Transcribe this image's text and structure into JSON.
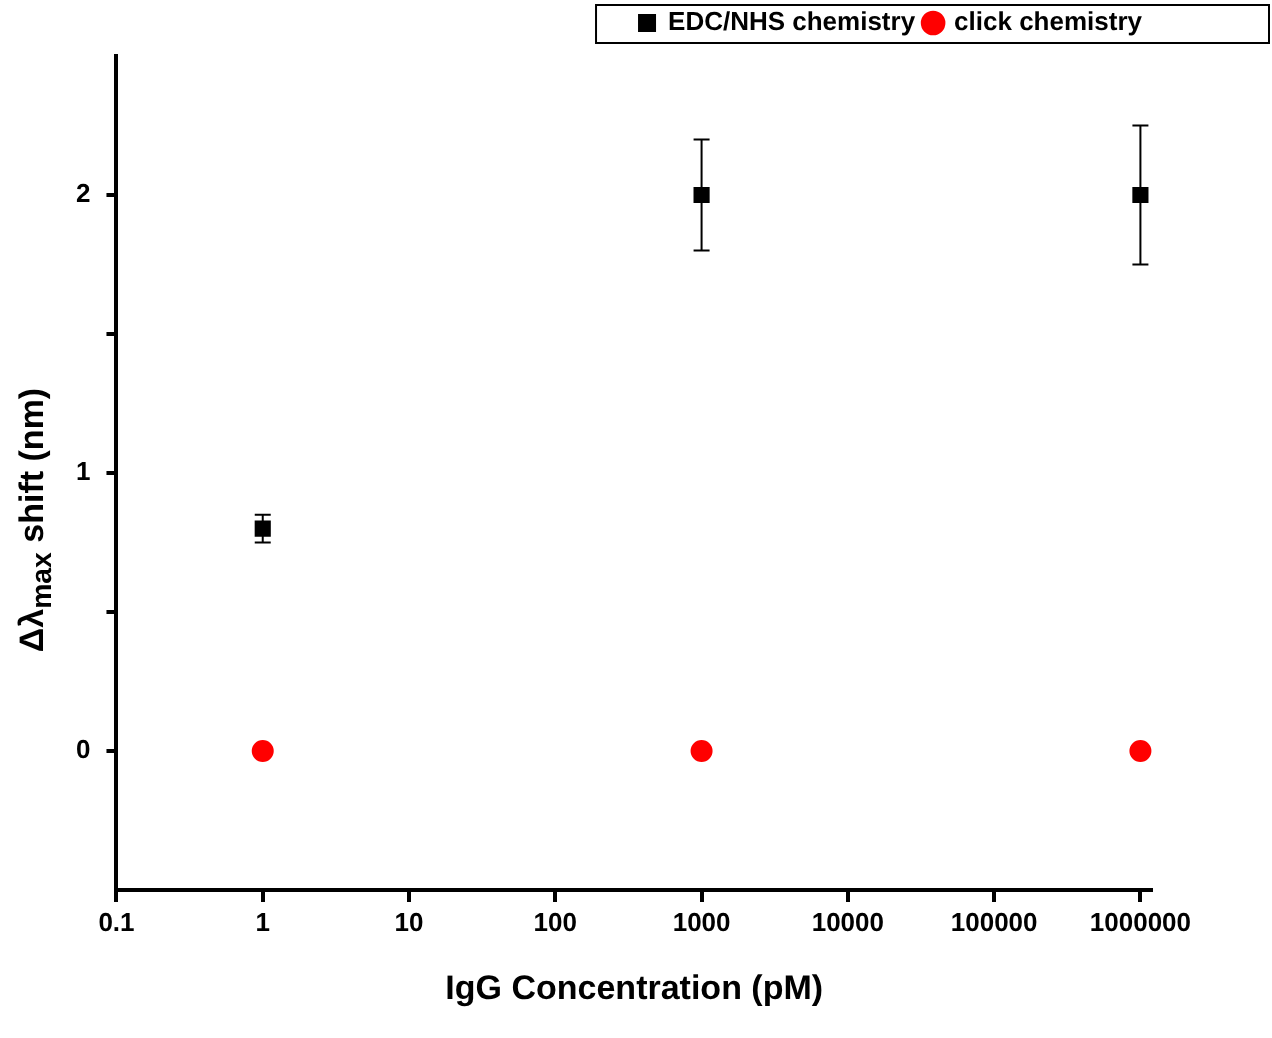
{
  "chart_data": {
    "type": "scatter",
    "xlabel": "IgG Concentration (pM)",
    "ylabel": "Δλ$_{max}$ shift (nm)",
    "x": [
      1,
      1000,
      1000000
    ],
    "log": "x",
    "xlim": [
      0.1,
      1200000
    ],
    "xticks": [
      0.1,
      1,
      10,
      100,
      1000,
      10000,
      100000,
      1000000
    ],
    "ylim": [
      -0.5,
      2.5
    ],
    "yticks": [
      0,
      {
        "value": 0.5,
        "label": null
      },
      1,
      {
        "value": 1.5,
        "label": null
      },
      2
    ],
    "legend": "top right",
    "series": [
      {
        "name": "EDC/NHS chemistry",
        "color": "#000000",
        "marker": "square",
        "values": [
          0.8,
          2,
          2
        ],
        "errors": [
          0.05,
          0.2,
          0.25
        ]
      },
      {
        "name": "click chemistry",
        "color": "#ff0000",
        "marker": "circle",
        "values": [
          0,
          0,
          0
        ]
      }
    ]
  }
}
